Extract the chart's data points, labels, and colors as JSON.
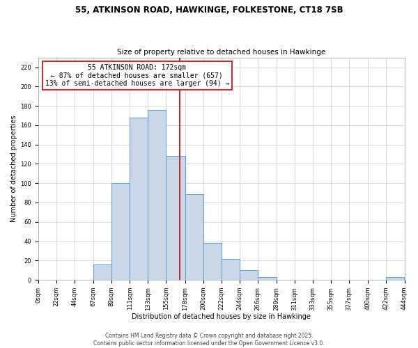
{
  "title_line1": "55, ATKINSON ROAD, HAWKINGE, FOLKESTONE, CT18 7SB",
  "title_line2": "Size of property relative to detached houses in Hawkinge",
  "xlabel": "Distribution of detached houses by size in Hawkinge",
  "ylabel": "Number of detached properties",
  "bar_left_edges": [
    0,
    22,
    44,
    67,
    89,
    111,
    133,
    155,
    178,
    200,
    222,
    244,
    266,
    289,
    311,
    333,
    355,
    377,
    400,
    422
  ],
  "bar_widths": [
    22,
    22,
    23,
    22,
    22,
    22,
    22,
    23,
    22,
    22,
    22,
    22,
    23,
    22,
    22,
    22,
    22,
    23,
    22,
    22
  ],
  "bar_heights": [
    0,
    0,
    0,
    16,
    100,
    168,
    176,
    128,
    89,
    38,
    22,
    10,
    3,
    0,
    0,
    0,
    0,
    0,
    0,
    3
  ],
  "bar_color": "#c8d8e8",
  "bar_edge_color": "#5b9bd5",
  "vline_x": 172,
  "vline_color": "#cc0000",
  "annotation_line1": "55 ATKINSON ROAD: 172sqm",
  "annotation_line2": "← 87% of detached houses are smaller (657)",
  "annotation_line3": "13% of semi-detached houses are larger (94) →",
  "annotation_box_color": "white",
  "annotation_box_edge_color": "#cc0000",
  "xlim": [
    0,
    444
  ],
  "ylim": [
    0,
    230
  ],
  "yticks": [
    0,
    20,
    40,
    60,
    80,
    100,
    120,
    140,
    160,
    180,
    200,
    220
  ],
  "xtick_labels": [
    "0sqm",
    "22sqm",
    "44sqm",
    "67sqm",
    "89sqm",
    "111sqm",
    "133sqm",
    "155sqm",
    "178sqm",
    "200sqm",
    "222sqm",
    "244sqm",
    "266sqm",
    "289sqm",
    "311sqm",
    "333sqm",
    "355sqm",
    "377sqm",
    "400sqm",
    "422sqm",
    "444sqm"
  ],
  "xtick_positions": [
    0,
    22,
    44,
    67,
    89,
    111,
    133,
    155,
    178,
    200,
    222,
    244,
    266,
    289,
    311,
    333,
    355,
    377,
    400,
    422,
    444
  ],
  "footnote_line1": "Contains HM Land Registry data © Crown copyright and database right 2025.",
  "footnote_line2": "Contains public sector information licensed under the Open Government Licence v3.0.",
  "grid_color": "#cccccc",
  "background_color": "#ffffff",
  "title_fontsize": 8.5,
  "subtitle_fontsize": 7.5,
  "axis_label_fontsize": 7,
  "tick_fontsize": 6,
  "annotation_fontsize": 7,
  "footnote_fontsize": 5.5
}
